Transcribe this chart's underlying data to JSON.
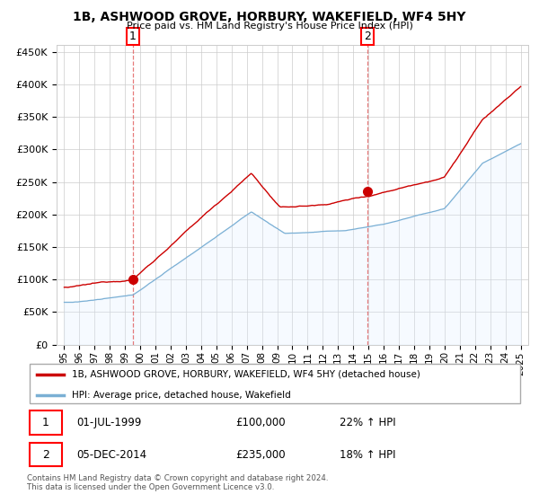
{
  "title": "1B, ASHWOOD GROVE, HORBURY, WAKEFIELD, WF4 5HY",
  "subtitle": "Price paid vs. HM Land Registry's House Price Index (HPI)",
  "legend_line1": "1B, ASHWOOD GROVE, HORBURY, WAKEFIELD, WF4 5HY (detached house)",
  "legend_line2": "HPI: Average price, detached house, Wakefield",
  "transaction1_date": "01-JUL-1999",
  "transaction1_price": "£100,000",
  "transaction1_hpi": "22% ↑ HPI",
  "transaction2_date": "05-DEC-2014",
  "transaction2_price": "£235,000",
  "transaction2_hpi": "18% ↑ HPI",
  "footer": "Contains HM Land Registry data © Crown copyright and database right 2024.\nThis data is licensed under the Open Government Licence v3.0.",
  "property_color": "#cc0000",
  "hpi_color": "#7aafd4",
  "hpi_fill_color": "#ddeeff",
  "ylim_min": 0,
  "ylim_max": 460000,
  "yticks": [
    0,
    50000,
    100000,
    150000,
    200000,
    250000,
    300000,
    350000,
    400000,
    450000
  ],
  "marker1_x": 1999.5,
  "marker1_y": 100000,
  "marker2_x": 2014.92,
  "marker2_y": 235000,
  "vline1_x": 1999.5,
  "vline2_x": 2014.92,
  "xlim_min": 1994.5,
  "xlim_max": 2025.5
}
